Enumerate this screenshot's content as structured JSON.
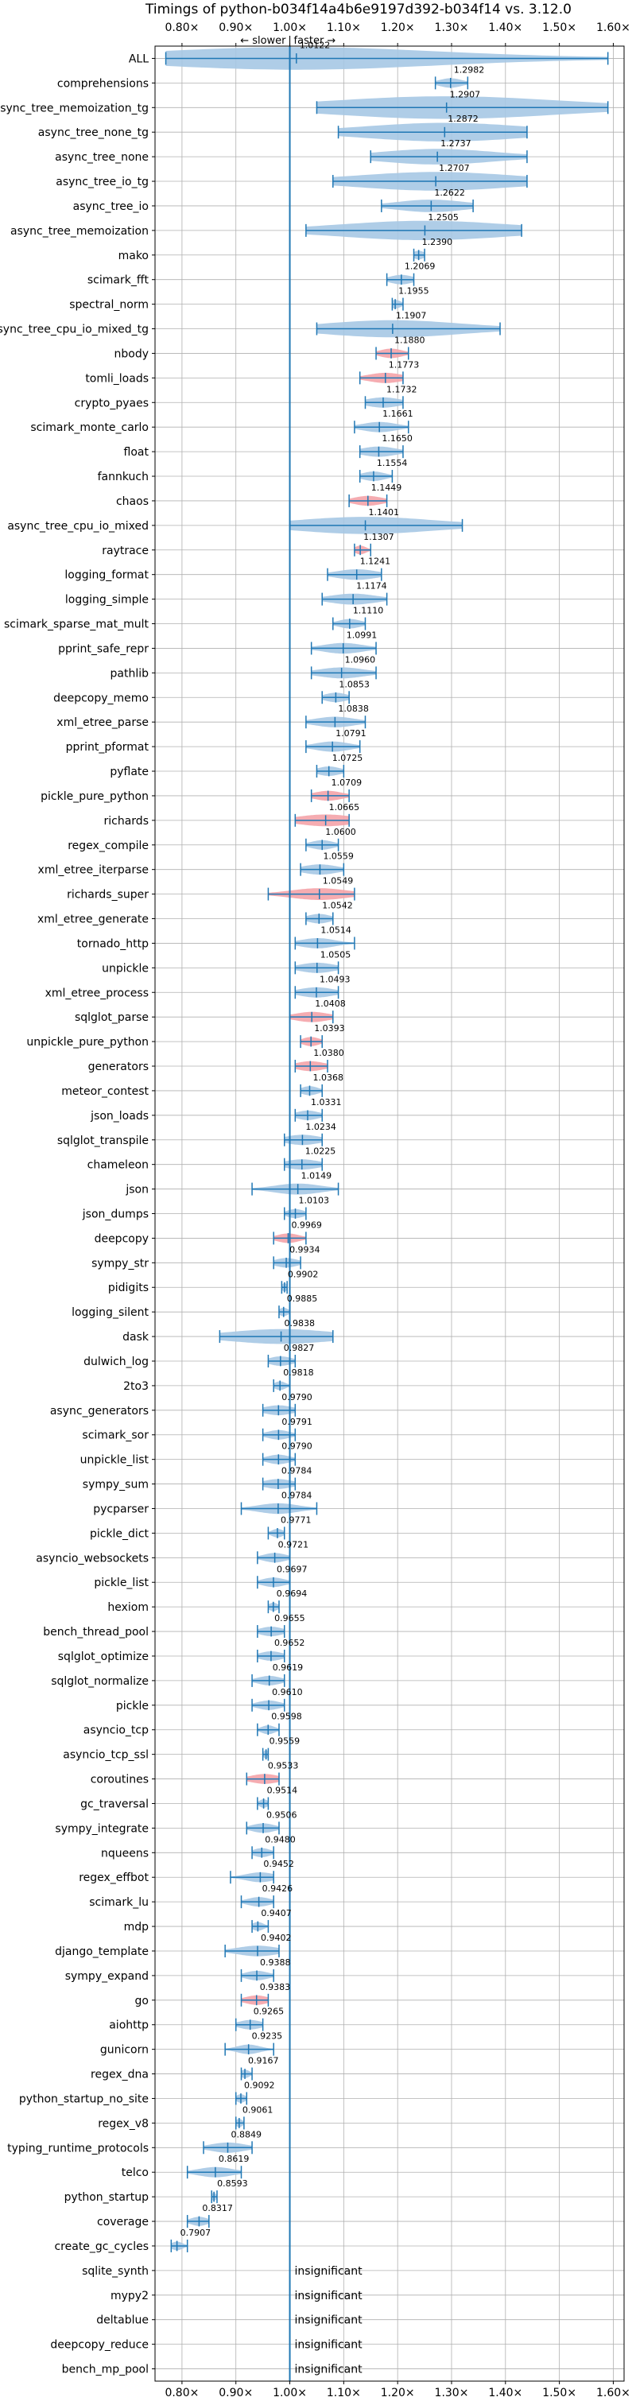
{
  "chart_data": {
    "type": "violin",
    "title": "Timings of python-b034f14a4b6e9197d392-b034f14 vs. 3.12.0",
    "direction_labels": {
      "slower": "← slower",
      "separator": "|",
      "faster": "faster →"
    },
    "xlim": [
      0.75,
      1.62
    ],
    "xticks": [
      0.8,
      0.9,
      1.0,
      1.1,
      1.2,
      1.3,
      1.4,
      1.5,
      1.6
    ],
    "xtick_labels": [
      "0.80×",
      "0.90×",
      "1.00×",
      "1.10×",
      "1.20×",
      "1.30×",
      "1.40×",
      "1.50×",
      "1.60×"
    ],
    "grid": true,
    "reference_line": 1.0,
    "colors": {
      "normal": "#1f77b4",
      "violin_normal": "#a6c8e4",
      "violin_highlight": "#f4a3a8",
      "grid": "#b0b0b0"
    },
    "benchmarks": [
      {
        "name": "ALL",
        "value": 1.0122,
        "label": "1.0122",
        "min": 0.77,
        "max": 1.59,
        "spread": 0.25,
        "highlight": false
      },
      {
        "name": "comprehensions",
        "value": 1.2982,
        "label": "1.2982",
        "min": 1.27,
        "max": 1.33,
        "spread": 0.02,
        "highlight": false
      },
      {
        "name": "async_tree_memoization_tg",
        "value": 1.2907,
        "label": "1.2907",
        "min": 1.05,
        "max": 1.59,
        "spread": 0.2,
        "highlight": false
      },
      {
        "name": "async_tree_none_tg",
        "value": 1.2872,
        "label": "1.2872",
        "min": 1.09,
        "max": 1.44,
        "spread": 0.14,
        "highlight": false
      },
      {
        "name": "async_tree_none",
        "value": 1.2737,
        "label": "1.2737",
        "min": 1.15,
        "max": 1.44,
        "spread": 0.1,
        "highlight": false
      },
      {
        "name": "async_tree_io_tg",
        "value": 1.2707,
        "label": "1.2707",
        "min": 1.08,
        "max": 1.44,
        "spread": 0.14,
        "highlight": false
      },
      {
        "name": "async_tree_io",
        "value": 1.2622,
        "label": "1.2622",
        "min": 1.17,
        "max": 1.34,
        "spread": 0.06,
        "highlight": false
      },
      {
        "name": "async_tree_memoization",
        "value": 1.2505,
        "label": "1.2505",
        "min": 1.03,
        "max": 1.43,
        "spread": 0.15,
        "highlight": false
      },
      {
        "name": "mako",
        "value": 1.239,
        "label": "1.2390",
        "min": 1.23,
        "max": 1.25,
        "spread": 0.01,
        "highlight": false
      },
      {
        "name": "scimark_fft",
        "value": 1.2069,
        "label": "1.2069",
        "min": 1.18,
        "max": 1.23,
        "spread": 0.02,
        "highlight": false
      },
      {
        "name": "spectral_norm",
        "value": 1.1955,
        "label": "1.1955",
        "min": 1.19,
        "max": 1.21,
        "spread": 0.01,
        "highlight": false
      },
      {
        "name": "async_tree_cpu_io_mixed_tg",
        "value": 1.1907,
        "label": "1.1907",
        "min": 1.05,
        "max": 1.39,
        "spread": 0.12,
        "highlight": false
      },
      {
        "name": "nbody",
        "value": 1.188,
        "label": "1.1880",
        "min": 1.16,
        "max": 1.22,
        "spread": 0.02,
        "highlight": true
      },
      {
        "name": "tomli_loads",
        "value": 1.1773,
        "label": "1.1773",
        "min": 1.13,
        "max": 1.21,
        "spread": 0.03,
        "highlight": true
      },
      {
        "name": "crypto_pyaes",
        "value": 1.1732,
        "label": "1.1732",
        "min": 1.14,
        "max": 1.21,
        "spread": 0.03,
        "highlight": false
      },
      {
        "name": "scimark_monte_carlo",
        "value": 1.1661,
        "label": "1.1661",
        "min": 1.12,
        "max": 1.22,
        "spread": 0.03,
        "highlight": false
      },
      {
        "name": "float",
        "value": 1.165,
        "label": "1.1650",
        "min": 1.13,
        "max": 1.21,
        "spread": 0.03,
        "highlight": false
      },
      {
        "name": "fannkuch",
        "value": 1.1554,
        "label": "1.1554",
        "min": 1.13,
        "max": 1.19,
        "spread": 0.02,
        "highlight": false
      },
      {
        "name": "chaos",
        "value": 1.1449,
        "label": "1.1449",
        "min": 1.11,
        "max": 1.18,
        "spread": 0.025,
        "highlight": true
      },
      {
        "name": "async_tree_cpu_io_mixed",
        "value": 1.1401,
        "label": "1.1401",
        "min": 1.0,
        "max": 1.32,
        "spread": 0.12,
        "highlight": false
      },
      {
        "name": "raytrace",
        "value": 1.1307,
        "label": "1.1307",
        "min": 1.12,
        "max": 1.15,
        "spread": 0.01,
        "highlight": true
      },
      {
        "name": "logging_format",
        "value": 1.1241,
        "label": "1.1241",
        "min": 1.07,
        "max": 1.17,
        "spread": 0.035,
        "highlight": false
      },
      {
        "name": "logging_simple",
        "value": 1.1174,
        "label": "1.1174",
        "min": 1.06,
        "max": 1.18,
        "spread": 0.04,
        "highlight": false
      },
      {
        "name": "scimark_sparse_mat_mult",
        "value": 1.111,
        "label": "1.1110",
        "min": 1.08,
        "max": 1.14,
        "spread": 0.02,
        "highlight": false
      },
      {
        "name": "pprint_safe_repr",
        "value": 1.0991,
        "label": "1.0991",
        "min": 1.04,
        "max": 1.16,
        "spread": 0.035,
        "highlight": false
      },
      {
        "name": "pathlib",
        "value": 1.096,
        "label": "1.0960",
        "min": 1.04,
        "max": 1.16,
        "spread": 0.04,
        "highlight": false
      },
      {
        "name": "deepcopy_memo",
        "value": 1.0853,
        "label": "1.0853",
        "min": 1.06,
        "max": 1.11,
        "spread": 0.02,
        "highlight": false
      },
      {
        "name": "xml_etree_parse",
        "value": 1.0838,
        "label": "1.0838",
        "min": 1.03,
        "max": 1.14,
        "spread": 0.035,
        "highlight": false
      },
      {
        "name": "pprint_pformat",
        "value": 1.0791,
        "label": "1.0791",
        "min": 1.03,
        "max": 1.13,
        "spread": 0.03,
        "highlight": false
      },
      {
        "name": "pyflate",
        "value": 1.0725,
        "label": "1.0725",
        "min": 1.05,
        "max": 1.1,
        "spread": 0.02,
        "highlight": false
      },
      {
        "name": "pickle_pure_python",
        "value": 1.0709,
        "label": "1.0709",
        "min": 1.04,
        "max": 1.11,
        "spread": 0.025,
        "highlight": true
      },
      {
        "name": "richards",
        "value": 1.0665,
        "label": "1.0665",
        "min": 1.01,
        "max": 1.11,
        "spread": 0.05,
        "highlight": true
      },
      {
        "name": "regex_compile",
        "value": 1.06,
        "label": "1.0600",
        "min": 1.03,
        "max": 1.09,
        "spread": 0.02,
        "highlight": false
      },
      {
        "name": "xml_etree_iterparse",
        "value": 1.0559,
        "label": "1.0559",
        "min": 1.02,
        "max": 1.1,
        "spread": 0.03,
        "highlight": false
      },
      {
        "name": "richards_super",
        "value": 1.0549,
        "label": "1.0549",
        "min": 0.96,
        "max": 1.12,
        "spread": 0.05,
        "highlight": true
      },
      {
        "name": "xml_etree_generate",
        "value": 1.0542,
        "label": "1.0542",
        "min": 1.03,
        "max": 1.08,
        "spread": 0.02,
        "highlight": false
      },
      {
        "name": "tornado_http",
        "value": 1.0514,
        "label": "1.0514",
        "min": 1.01,
        "max": 1.12,
        "spread": 0.03,
        "highlight": false
      },
      {
        "name": "unpickle",
        "value": 1.0505,
        "label": "1.0505",
        "min": 1.01,
        "max": 1.09,
        "spread": 0.03,
        "highlight": false
      },
      {
        "name": "xml_etree_process",
        "value": 1.0493,
        "label": "1.0493",
        "min": 1.01,
        "max": 1.09,
        "spread": 0.03,
        "highlight": false
      },
      {
        "name": "sqlglot_parse",
        "value": 1.0408,
        "label": "1.0408",
        "min": 1.0,
        "max": 1.08,
        "spread": 0.03,
        "highlight": true
      },
      {
        "name": "unpickle_pure_python",
        "value": 1.0393,
        "label": "1.0393",
        "min": 1.02,
        "max": 1.06,
        "spread": 0.015,
        "highlight": true
      },
      {
        "name": "generators",
        "value": 1.038,
        "label": "1.0380",
        "min": 1.01,
        "max": 1.07,
        "spread": 0.025,
        "highlight": true
      },
      {
        "name": "meteor_contest",
        "value": 1.0368,
        "label": "1.0368",
        "min": 1.02,
        "max": 1.06,
        "spread": 0.015,
        "highlight": false
      },
      {
        "name": "json_loads",
        "value": 1.0331,
        "label": "1.0331",
        "min": 1.01,
        "max": 1.06,
        "spread": 0.02,
        "highlight": false
      },
      {
        "name": "sqlglot_transpile",
        "value": 1.0234,
        "label": "1.0234",
        "min": 0.99,
        "max": 1.06,
        "spread": 0.03,
        "highlight": false
      },
      {
        "name": "chameleon",
        "value": 1.0225,
        "label": "1.0225",
        "min": 0.99,
        "max": 1.06,
        "spread": 0.03,
        "highlight": false
      },
      {
        "name": "json",
        "value": 1.0149,
        "label": "1.0149",
        "min": 0.93,
        "max": 1.09,
        "spread": 0.04,
        "highlight": false
      },
      {
        "name": "json_dumps",
        "value": 1.0103,
        "label": "1.0103",
        "min": 0.99,
        "max": 1.03,
        "spread": 0.015,
        "highlight": false
      },
      {
        "name": "deepcopy",
        "value": 0.9969,
        "label": "0.9969",
        "min": 0.97,
        "max": 1.03,
        "spread": 0.02,
        "highlight": true
      },
      {
        "name": "sympy_str",
        "value": 0.9934,
        "label": "0.9934",
        "min": 0.97,
        "max": 1.02,
        "spread": 0.02,
        "highlight": false
      },
      {
        "name": "pidigits",
        "value": 0.9902,
        "label": "0.9902",
        "min": 0.985,
        "max": 0.995,
        "spread": 0.005,
        "highlight": false
      },
      {
        "name": "logging_silent",
        "value": 0.9885,
        "label": "0.9885",
        "min": 0.98,
        "max": 1.0,
        "spread": 0.008,
        "highlight": false
      },
      {
        "name": "dask",
        "value": 0.9838,
        "label": "0.9838",
        "min": 0.87,
        "max": 1.08,
        "spread": 0.09,
        "highlight": false
      },
      {
        "name": "dulwich_log",
        "value": 0.9827,
        "label": "0.9827",
        "min": 0.96,
        "max": 1.01,
        "spread": 0.02,
        "highlight": false
      },
      {
        "name": "2to3",
        "value": 0.9818,
        "label": "0.9818",
        "min": 0.97,
        "max": 1.0,
        "spread": 0.01,
        "highlight": false
      },
      {
        "name": "async_generators",
        "value": 0.979,
        "label": "0.9790",
        "min": 0.95,
        "max": 1.01,
        "spread": 0.025,
        "highlight": false
      },
      {
        "name": "scimark_sor",
        "value": 0.9791,
        "label": "0.9791",
        "min": 0.95,
        "max": 1.01,
        "spread": 0.02,
        "highlight": false
      },
      {
        "name": "unpickle_list",
        "value": 0.979,
        "label": "0.9790",
        "min": 0.95,
        "max": 1.01,
        "spread": 0.02,
        "highlight": false
      },
      {
        "name": "sympy_sum",
        "value": 0.9784,
        "label": "0.9784",
        "min": 0.95,
        "max": 1.01,
        "spread": 0.025,
        "highlight": false
      },
      {
        "name": "pycparser",
        "value": 0.9784,
        "label": "0.9784",
        "min": 0.91,
        "max": 1.05,
        "spread": 0.035,
        "highlight": false
      },
      {
        "name": "pickle_dict",
        "value": 0.9771,
        "label": "0.9771",
        "min": 0.96,
        "max": 0.99,
        "spread": 0.01,
        "highlight": false
      },
      {
        "name": "asyncio_websockets",
        "value": 0.9721,
        "label": "0.9721",
        "min": 0.94,
        "max": 1.0,
        "spread": 0.02,
        "highlight": false
      },
      {
        "name": "pickle_list",
        "value": 0.9697,
        "label": "0.9697",
        "min": 0.94,
        "max": 1.0,
        "spread": 0.02,
        "highlight": false
      },
      {
        "name": "hexiom",
        "value": 0.9694,
        "label": "0.9694",
        "min": 0.96,
        "max": 0.98,
        "spread": 0.008,
        "highlight": false
      },
      {
        "name": "bench_thread_pool",
        "value": 0.9655,
        "label": "0.9655",
        "min": 0.94,
        "max": 0.99,
        "spread": 0.02,
        "highlight": false
      },
      {
        "name": "sqlglot_optimize",
        "value": 0.9652,
        "label": "0.9652",
        "min": 0.94,
        "max": 0.99,
        "spread": 0.02,
        "highlight": false
      },
      {
        "name": "sqlglot_normalize",
        "value": 0.9619,
        "label": "0.9619",
        "min": 0.93,
        "max": 0.99,
        "spread": 0.02,
        "highlight": false
      },
      {
        "name": "pickle",
        "value": 0.961,
        "label": "0.9610",
        "min": 0.93,
        "max": 0.99,
        "spread": 0.02,
        "highlight": false
      },
      {
        "name": "asyncio_tcp",
        "value": 0.9598,
        "label": "0.9598",
        "min": 0.94,
        "max": 0.98,
        "spread": 0.012,
        "highlight": false
      },
      {
        "name": "asyncio_tcp_ssl",
        "value": 0.9559,
        "label": "0.9559",
        "min": 0.95,
        "max": 0.96,
        "spread": 0.005,
        "highlight": false
      },
      {
        "name": "coroutines",
        "value": 0.9533,
        "label": "0.9533",
        "min": 0.92,
        "max": 0.98,
        "spread": 0.025,
        "highlight": true
      },
      {
        "name": "gc_traversal",
        "value": 0.9514,
        "label": "0.9514",
        "min": 0.94,
        "max": 0.96,
        "spread": 0.008,
        "highlight": false
      },
      {
        "name": "sympy_integrate",
        "value": 0.9506,
        "label": "0.9506",
        "min": 0.92,
        "max": 0.98,
        "spread": 0.02,
        "highlight": false
      },
      {
        "name": "nqueens",
        "value": 0.948,
        "label": "0.9480",
        "min": 0.93,
        "max": 0.97,
        "spread": 0.015,
        "highlight": false
      },
      {
        "name": "regex_effbot",
        "value": 0.9452,
        "label": "0.9452",
        "min": 0.89,
        "max": 0.97,
        "spread": 0.025,
        "highlight": false
      },
      {
        "name": "scimark_lu",
        "value": 0.9426,
        "label": "0.9426",
        "min": 0.91,
        "max": 0.97,
        "spread": 0.02,
        "highlight": false
      },
      {
        "name": "mdp",
        "value": 0.9407,
        "label": "0.9407",
        "min": 0.93,
        "max": 0.96,
        "spread": 0.01,
        "highlight": false
      },
      {
        "name": "django_template",
        "value": 0.9402,
        "label": "0.9402",
        "min": 0.88,
        "max": 0.98,
        "spread": 0.035,
        "highlight": false
      },
      {
        "name": "sympy_expand",
        "value": 0.9388,
        "label": "0.9388",
        "min": 0.91,
        "max": 0.97,
        "spread": 0.02,
        "highlight": false
      },
      {
        "name": "go",
        "value": 0.9383,
        "label": "0.9383",
        "min": 0.91,
        "max": 0.96,
        "spread": 0.02,
        "highlight": true
      },
      {
        "name": "aiohttp",
        "value": 0.9265,
        "label": "0.9265",
        "min": 0.9,
        "max": 0.95,
        "spread": 0.02,
        "highlight": false
      },
      {
        "name": "gunicorn",
        "value": 0.9235,
        "label": "0.9235",
        "min": 0.88,
        "max": 0.97,
        "spread": 0.02,
        "highlight": false
      },
      {
        "name": "regex_dna",
        "value": 0.9167,
        "label": "0.9167",
        "min": 0.91,
        "max": 0.93,
        "spread": 0.008,
        "highlight": false
      },
      {
        "name": "python_startup_no_site",
        "value": 0.9092,
        "label": "0.9092",
        "min": 0.9,
        "max": 0.92,
        "spread": 0.008,
        "highlight": false
      },
      {
        "name": "regex_v8",
        "value": 0.9061,
        "label": "0.9061",
        "min": 0.9,
        "max": 0.915,
        "spread": 0.006,
        "highlight": false
      },
      {
        "name": "typing_runtime_protocols",
        "value": 0.8849,
        "label": "0.8849",
        "min": 0.84,
        "max": 0.93,
        "spread": 0.03,
        "highlight": false
      },
      {
        "name": "telco",
        "value": 0.8619,
        "label": "0.8619",
        "min": 0.81,
        "max": 0.91,
        "spread": 0.03,
        "highlight": false
      },
      {
        "name": "python_startup",
        "value": 0.8593,
        "label": "0.8593",
        "min": 0.855,
        "max": 0.865,
        "spread": 0.004,
        "highlight": false
      },
      {
        "name": "coverage",
        "value": 0.8317,
        "label": "0.8317",
        "min": 0.81,
        "max": 0.85,
        "spread": 0.015,
        "highlight": false
      },
      {
        "name": "create_gc_cycles",
        "value": 0.7907,
        "label": "0.7907",
        "min": 0.78,
        "max": 0.81,
        "spread": 0.01,
        "highlight": false
      },
      {
        "name": "sqlite_synth",
        "value": null,
        "label": "insignificant",
        "highlight": false
      },
      {
        "name": "mypy2",
        "value": null,
        "label": "insignificant",
        "highlight": false
      },
      {
        "name": "deltablue",
        "value": null,
        "label": "insignificant",
        "highlight": false
      },
      {
        "name": "deepcopy_reduce",
        "value": null,
        "label": "insignificant",
        "highlight": false
      },
      {
        "name": "bench_mp_pool",
        "value": null,
        "label": "insignificant",
        "highlight": false
      }
    ]
  }
}
